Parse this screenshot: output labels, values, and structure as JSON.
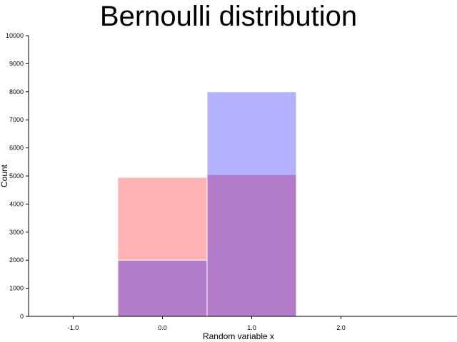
{
  "chart_data": {
    "type": "bar",
    "title": "Bernoulli distribution",
    "xlabel": "Random variable x",
    "ylabel": "Count",
    "xlim": [
      -1.5,
      3.3
    ],
    "ylim": [
      0,
      10000
    ],
    "x_ticks": [
      "-1.0",
      "0.0",
      "1.0",
      "2.0"
    ],
    "x_tick_values": [
      -1,
      0,
      1,
      2
    ],
    "y_ticks": [
      "0",
      "1000",
      "2000",
      "3000",
      "4000",
      "5000",
      "6000",
      "7000",
      "8000",
      "9000",
      "10000"
    ],
    "y_tick_values": [
      0,
      1000,
      2000,
      3000,
      4000,
      5000,
      6000,
      7000,
      8000,
      9000,
      10000
    ],
    "bar_width": 1.0,
    "series": [
      {
        "x": [
          0,
          1
        ],
        "values": [
          4950,
          5050
        ],
        "color": "#ff0000",
        "opacity": 0.3
      },
      {
        "x": [
          0,
          1
        ],
        "values": [
          2000,
          8000
        ],
        "color": "#0000ff",
        "opacity": 0.3
      }
    ],
    "grid": false
  }
}
